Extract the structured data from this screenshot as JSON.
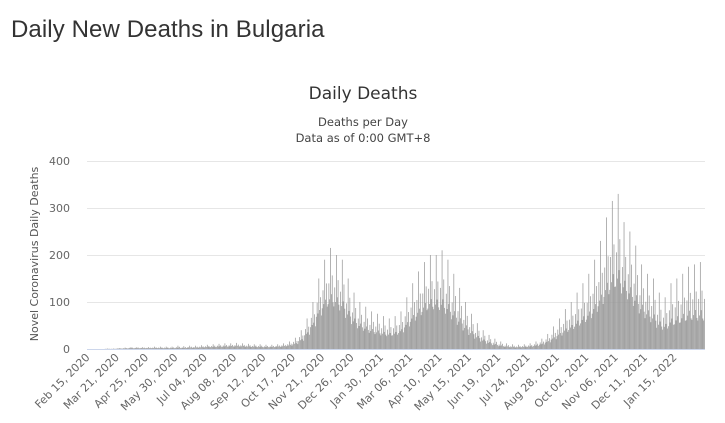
{
  "page": {
    "heading": "Daily New Deaths in Bulgaria"
  },
  "chart_data": {
    "type": "bar",
    "title": "Daily Deaths",
    "subtitle_lines": [
      "Deaths per Day",
      "Data as of 0:00 GMT+8"
    ],
    "ylabel": "Novel Coronavirus Daily Deaths",
    "xlabel": "",
    "ylim": [
      0,
      400
    ],
    "yticks": [
      0,
      100,
      200,
      300,
      400
    ],
    "grid": true,
    "legend": "none",
    "bar_color": "#999999",
    "x_start": "2020-02-15",
    "x_end": "2022-02-20",
    "xtick_labels": [
      "Feb 15, 2020",
      "Mar 21, 2020",
      "Apr 25, 2020",
      "May 30, 2020",
      "Jul 04, 2020",
      "Aug 08, 2020",
      "Sep 12, 2020",
      "Oct 17, 2020",
      "Nov 21, 2020",
      "Dec 26, 2020",
      "Jan 30, 2021",
      "Mar 06, 2021",
      "Apr 10, 2021",
      "May 15, 2021",
      "Jun 19, 2021",
      "Jul 24, 2021",
      "Aug 28, 2021",
      "Oct 02, 2021",
      "Nov 06, 2021",
      "Dec 11, 2021",
      "Jan 15, 2022"
    ],
    "weekly_estimates": [
      {
        "week_of": "2020-02-15",
        "avg": 0,
        "peak": 0
      },
      {
        "week_of": "2020-02-22",
        "avg": 0,
        "peak": 0
      },
      {
        "week_of": "2020-02-29",
        "avg": 0,
        "peak": 0
      },
      {
        "week_of": "2020-03-07",
        "avg": 0,
        "peak": 1
      },
      {
        "week_of": "2020-03-14",
        "avg": 0,
        "peak": 1
      },
      {
        "week_of": "2020-03-21",
        "avg": 1,
        "peak": 2
      },
      {
        "week_of": "2020-03-28",
        "avg": 1,
        "peak": 3
      },
      {
        "week_of": "2020-04-04",
        "avg": 2,
        "peak": 4
      },
      {
        "week_of": "2020-04-11",
        "avg": 2,
        "peak": 4
      },
      {
        "week_of": "2020-04-18",
        "avg": 2,
        "peak": 4
      },
      {
        "week_of": "2020-04-25",
        "avg": 2,
        "peak": 4
      },
      {
        "week_of": "2020-05-02",
        "avg": 2,
        "peak": 5
      },
      {
        "week_of": "2020-05-09",
        "avg": 2,
        "peak": 5
      },
      {
        "week_of": "2020-05-16",
        "avg": 2,
        "peak": 5
      },
      {
        "week_of": "2020-05-23",
        "avg": 2,
        "peak": 5
      },
      {
        "week_of": "2020-05-30",
        "avg": 2,
        "peak": 7
      },
      {
        "week_of": "2020-06-06",
        "avg": 2,
        "peak": 6
      },
      {
        "week_of": "2020-06-13",
        "avg": 3,
        "peak": 7
      },
      {
        "week_of": "2020-06-20",
        "avg": 3,
        "peak": 7
      },
      {
        "week_of": "2020-06-27",
        "avg": 4,
        "peak": 8
      },
      {
        "week_of": "2020-07-04",
        "avg": 5,
        "peak": 9
      },
      {
        "week_of": "2020-07-11",
        "avg": 5,
        "peak": 10
      },
      {
        "week_of": "2020-07-18",
        "avg": 6,
        "peak": 11
      },
      {
        "week_of": "2020-07-25",
        "avg": 6,
        "peak": 12
      },
      {
        "week_of": "2020-08-01",
        "avg": 7,
        "peak": 12
      },
      {
        "week_of": "2020-08-08",
        "avg": 7,
        "peak": 13
      },
      {
        "week_of": "2020-08-15",
        "avg": 7,
        "peak": 12
      },
      {
        "week_of": "2020-08-22",
        "avg": 6,
        "peak": 11
      },
      {
        "week_of": "2020-08-29",
        "avg": 6,
        "peak": 10
      },
      {
        "week_of": "2020-09-05",
        "avg": 5,
        "peak": 10
      },
      {
        "week_of": "2020-09-12",
        "avg": 5,
        "peak": 9
      },
      {
        "week_of": "2020-09-19",
        "avg": 5,
        "peak": 9
      },
      {
        "week_of": "2020-09-26",
        "avg": 6,
        "peak": 10
      },
      {
        "week_of": "2020-10-03",
        "avg": 7,
        "peak": 12
      },
      {
        "week_of": "2020-10-10",
        "avg": 9,
        "peak": 16
      },
      {
        "week_of": "2020-10-17",
        "avg": 13,
        "peak": 24
      },
      {
        "week_of": "2020-10-24",
        "avg": 22,
        "peak": 40
      },
      {
        "week_of": "2020-10-31",
        "avg": 40,
        "peak": 65
      },
      {
        "week_of": "2020-11-07",
        "avg": 65,
        "peak": 100
      },
      {
        "week_of": "2020-11-14",
        "avg": 95,
        "peak": 150
      },
      {
        "week_of": "2020-11-21",
        "avg": 120,
        "peak": 190
      },
      {
        "week_of": "2020-11-28",
        "avg": 130,
        "peak": 215
      },
      {
        "week_of": "2020-12-05",
        "avg": 125,
        "peak": 200
      },
      {
        "week_of": "2020-12-12",
        "avg": 110,
        "peak": 190
      },
      {
        "week_of": "2020-12-19",
        "avg": 90,
        "peak": 150
      },
      {
        "week_of": "2020-12-26",
        "avg": 72,
        "peak": 120
      },
      {
        "week_of": "2021-01-02",
        "avg": 60,
        "peak": 100
      },
      {
        "week_of": "2021-01-09",
        "avg": 52,
        "peak": 90
      },
      {
        "week_of": "2021-01-16",
        "avg": 46,
        "peak": 80
      },
      {
        "week_of": "2021-01-23",
        "avg": 42,
        "peak": 75
      },
      {
        "week_of": "2021-01-30",
        "avg": 38,
        "peak": 70
      },
      {
        "week_of": "2021-02-06",
        "avg": 36,
        "peak": 65
      },
      {
        "week_of": "2021-02-13",
        "avg": 38,
        "peak": 70
      },
      {
        "week_of": "2021-02-20",
        "avg": 45,
        "peak": 80
      },
      {
        "week_of": "2021-02-27",
        "avg": 60,
        "peak": 110
      },
      {
        "week_of": "2021-03-06",
        "avg": 75,
        "peak": 140
      },
      {
        "week_of": "2021-03-13",
        "avg": 90,
        "peak": 165
      },
      {
        "week_of": "2021-03-20",
        "avg": 105,
        "peak": 185
      },
      {
        "week_of": "2021-03-27",
        "avg": 115,
        "peak": 200
      },
      {
        "week_of": "2021-04-03",
        "avg": 112,
        "peak": 200
      },
      {
        "week_of": "2021-04-10",
        "avg": 105,
        "peak": 210
      },
      {
        "week_of": "2021-04-17",
        "avg": 95,
        "peak": 190
      },
      {
        "week_of": "2021-04-24",
        "avg": 80,
        "peak": 160
      },
      {
        "week_of": "2021-05-01",
        "avg": 65,
        "peak": 130
      },
      {
        "week_of": "2021-05-08",
        "avg": 50,
        "peak": 100
      },
      {
        "week_of": "2021-05-15",
        "avg": 38,
        "peak": 75
      },
      {
        "week_of": "2021-05-22",
        "avg": 28,
        "peak": 55
      },
      {
        "week_of": "2021-05-29",
        "avg": 20,
        "peak": 40
      },
      {
        "week_of": "2021-06-05",
        "avg": 14,
        "peak": 30
      },
      {
        "week_of": "2021-06-12",
        "avg": 10,
        "peak": 22
      },
      {
        "week_of": "2021-06-19",
        "avg": 7,
        "peak": 16
      },
      {
        "week_of": "2021-06-26",
        "avg": 5,
        "peak": 12
      },
      {
        "week_of": "2021-07-03",
        "avg": 4,
        "peak": 10
      },
      {
        "week_of": "2021-07-10",
        "avg": 4,
        "peak": 9
      },
      {
        "week_of": "2021-07-17",
        "avg": 5,
        "peak": 10
      },
      {
        "week_of": "2021-07-24",
        "avg": 6,
        "peak": 12
      },
      {
        "week_of": "2021-07-31",
        "avg": 8,
        "peak": 16
      },
      {
        "week_of": "2021-08-07",
        "avg": 12,
        "peak": 22
      },
      {
        "week_of": "2021-08-14",
        "avg": 18,
        "peak": 32
      },
      {
        "week_of": "2021-08-21",
        "avg": 26,
        "peak": 48
      },
      {
        "week_of": "2021-08-28",
        "avg": 36,
        "peak": 65
      },
      {
        "week_of": "2021-09-04",
        "avg": 45,
        "peak": 85
      },
      {
        "week_of": "2021-09-11",
        "avg": 52,
        "peak": 100
      },
      {
        "week_of": "2021-09-18",
        "avg": 60,
        "peak": 120
      },
      {
        "week_of": "2021-09-25",
        "avg": 68,
        "peak": 140
      },
      {
        "week_of": "2021-10-02",
        "avg": 78,
        "peak": 160
      },
      {
        "week_of": "2021-10-09",
        "avg": 95,
        "peak": 190
      },
      {
        "week_of": "2021-10-16",
        "avg": 115,
        "peak": 230
      },
      {
        "week_of": "2021-10-23",
        "avg": 140,
        "peak": 280
      },
      {
        "week_of": "2021-10-30",
        "avg": 160,
        "peak": 315
      },
      {
        "week_of": "2021-11-06",
        "avg": 170,
        "peak": 330
      },
      {
        "week_of": "2021-11-13",
        "avg": 160,
        "peak": 270
      },
      {
        "week_of": "2021-11-20",
        "avg": 140,
        "peak": 250
      },
      {
        "week_of": "2021-11-27",
        "avg": 120,
        "peak": 220
      },
      {
        "week_of": "2021-12-04",
        "avg": 100,
        "peak": 180
      },
      {
        "week_of": "2021-12-11",
        "avg": 85,
        "peak": 160
      },
      {
        "week_of": "2021-12-18",
        "avg": 70,
        "peak": 150
      },
      {
        "week_of": "2021-12-25",
        "avg": 55,
        "peak": 120
      },
      {
        "week_of": "2022-01-01",
        "avg": 50,
        "peak": 110
      },
      {
        "week_of": "2022-01-08",
        "avg": 55,
        "peak": 140
      },
      {
        "week_of": "2022-01-15",
        "avg": 60,
        "peak": 150
      },
      {
        "week_of": "2022-01-22",
        "avg": 65,
        "peak": 160
      },
      {
        "week_of": "2022-01-29",
        "avg": 70,
        "peak": 175
      },
      {
        "week_of": "2022-02-05",
        "avg": 70,
        "peak": 180
      },
      {
        "week_of": "2022-02-12",
        "avg": 65,
        "peak": 185
      }
    ]
  }
}
